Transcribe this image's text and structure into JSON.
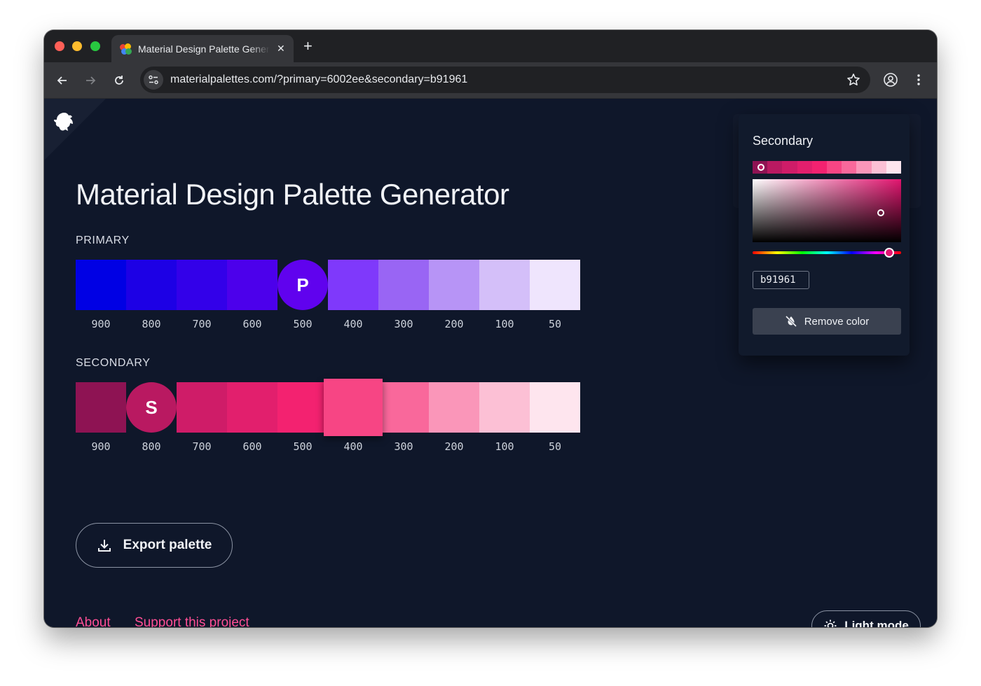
{
  "browser": {
    "tab_title": "Material Design Palette Generator",
    "url": "materialpalettes.com/?primary=6002ee&secondary=b91961",
    "icons": [
      "back-icon",
      "forward-icon",
      "reload-icon",
      "site-info-icon",
      "bookmark-star-icon",
      "profile-icon",
      "menu-dots-icon",
      "close-icon",
      "plus-icon"
    ]
  },
  "page": {
    "title": "Material Design Palette Generator"
  },
  "primary": {
    "label": "PRIMARY",
    "letter": "P",
    "swatches": [
      {
        "shade": "900",
        "color": "#0000e4"
      },
      {
        "shade": "800",
        "color": "#1d00e5"
      },
      {
        "shade": "700",
        "color": "#3300e9"
      },
      {
        "shade": "600",
        "color": "#4c00eb"
      },
      {
        "shade": "500",
        "color": "#6002ee"
      },
      {
        "shade": "400",
        "color": "#7f39fb"
      },
      {
        "shade": "300",
        "color": "#9965f4"
      },
      {
        "shade": "200",
        "color": "#b794f6"
      },
      {
        "shade": "100",
        "color": "#d4bff9"
      },
      {
        "shade": "50",
        "color": "#efe5fd"
      }
    ]
  },
  "secondary": {
    "label": "SECONDARY",
    "letter": "S",
    "hovered_tooltip": "#f74584",
    "swatches": [
      {
        "shade": "900",
        "color": "#8e1353"
      },
      {
        "shade": "800",
        "color": "#b91961"
      },
      {
        "shade": "700",
        "color": "#cf1c68"
      },
      {
        "shade": "600",
        "color": "#e21f6d"
      },
      {
        "shade": "500",
        "color": "#f32270"
      },
      {
        "shade": "400",
        "color": "#f74584"
      },
      {
        "shade": "300",
        "color": "#f9689b"
      },
      {
        "shade": "200",
        "color": "#fa96b9"
      },
      {
        "shade": "100",
        "color": "#fcc0d5"
      },
      {
        "shade": "50",
        "color": "#fee5ee"
      }
    ]
  },
  "actions": {
    "export_label": "Export palette",
    "about_label": "About",
    "support_label": "Support this project",
    "light_mode_label": "Light mode"
  },
  "picker": {
    "title": "Secondary",
    "hex_value": "b91961",
    "remove_label": "Remove color",
    "hue_color": "#e1156f"
  },
  "colors": {
    "page_bg": "#0f172a",
    "link": "#ff4f95"
  }
}
